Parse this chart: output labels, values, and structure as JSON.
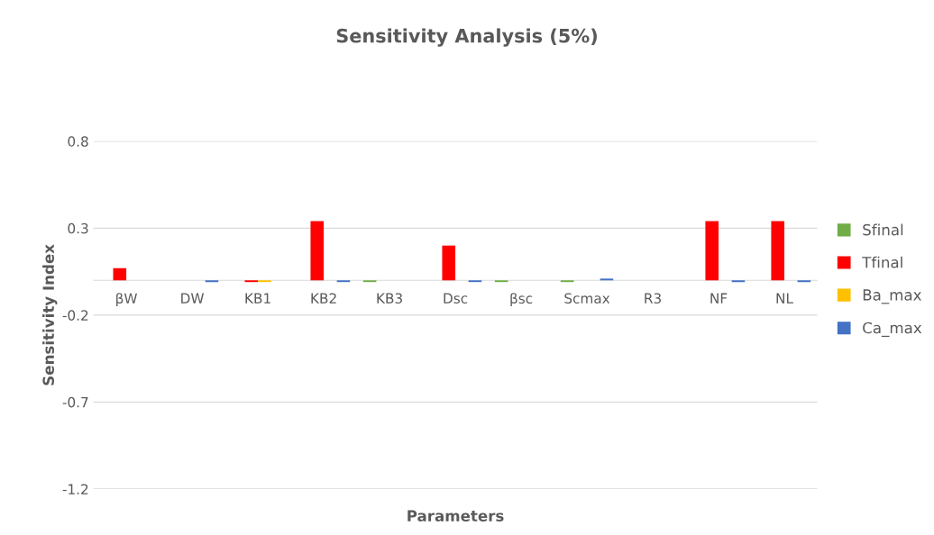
{
  "chart_data": {
    "type": "bar",
    "title": "Sensitivity Analysis (5%)",
    "xlabel": "Parameters",
    "ylabel": "Sensitivity Index",
    "categories": [
      "βW",
      "DW",
      "KB1",
      "KB2",
      "KB3",
      "Dsc",
      "βsc",
      "Scmax",
      "R3",
      "NF",
      "NL"
    ],
    "series": [
      {
        "name": "Sfinal",
        "color": "#70ad47",
        "values": [
          0,
          0,
          0,
          0,
          -0.01,
          0,
          -0.01,
          -0.01,
          0,
          0,
          0
        ]
      },
      {
        "name": "Tfinal",
        "color": "#ff0000",
        "values": [
          0.07,
          0,
          -0.01,
          0.34,
          0,
          0.2,
          0,
          0,
          0,
          0.34,
          0.34
        ]
      },
      {
        "name": "Ba_max",
        "color": "#ffc000",
        "values": [
          0,
          0,
          -0.01,
          0,
          0,
          0,
          0,
          0,
          0,
          0,
          0
        ]
      },
      {
        "name": "Ca_max",
        "color": "#4472c4",
        "values": [
          0,
          -0.01,
          0,
          -0.01,
          0,
          -0.01,
          0,
          0.01,
          0,
          -0.01,
          -0.01
        ]
      }
    ],
    "ylim": [
      -1.2,
      0.8
    ],
    "yticks": [
      -1.2,
      -0.7,
      -0.2,
      0.3,
      0.8
    ],
    "grid": "y",
    "legend": "right"
  }
}
